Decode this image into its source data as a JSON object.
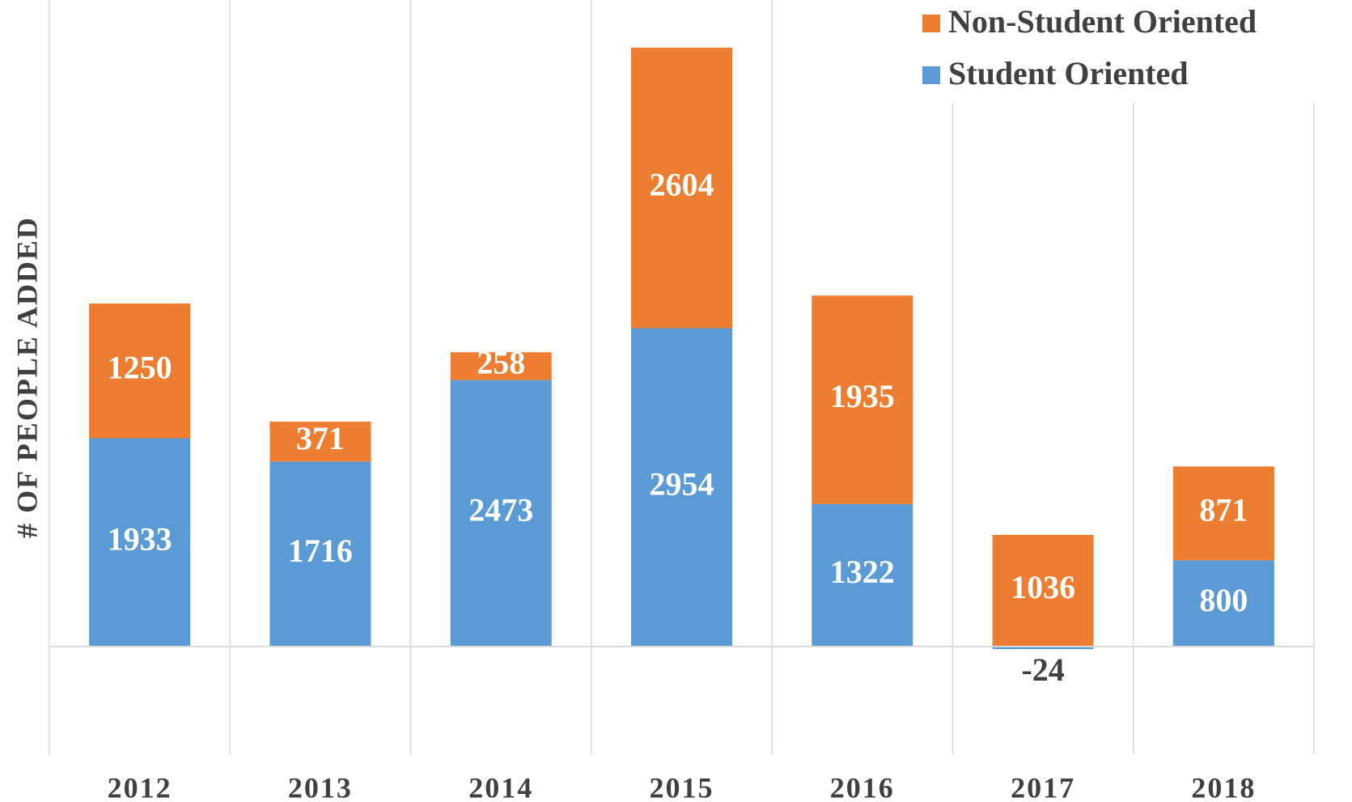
{
  "chart_data": {
    "type": "stacked_bar",
    "y_axis_label": "# OF PEOPLE ADDED",
    "categories": [
      "2012",
      "2013",
      "2014",
      "2015",
      "2016",
      "2017",
      "2018"
    ],
    "series": [
      {
        "name": "Student Oriented",
        "color": "#5b9bd5",
        "values": [
          1933,
          1716,
          2473,
          2954,
          1322,
          -24,
          800
        ]
      },
      {
        "name": "Non-Student Oriented",
        "color": "#ed7d31",
        "values": [
          1250,
          371,
          258,
          2604,
          1935,
          1036,
          871
        ]
      }
    ],
    "ylim": [
      -1000,
      6000
    ],
    "legend": "top-right"
  }
}
